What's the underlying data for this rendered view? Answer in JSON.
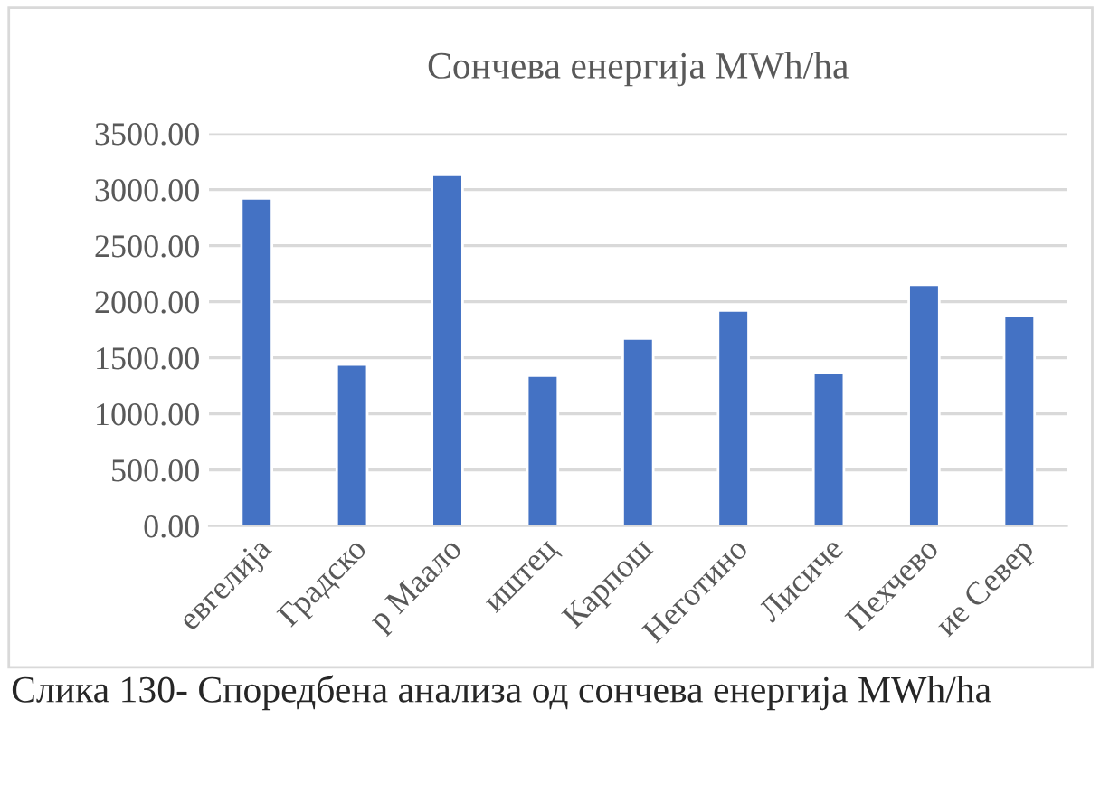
{
  "chart_data": {
    "type": "bar",
    "title": "Сончева енергија MWh/ha",
    "categories": [
      "евгелија",
      "Градско",
      "р Маало",
      "иштец",
      "Карпош",
      "Неготино",
      "Лисиче",
      "Пехчево",
      "ие Север"
    ],
    "values": [
      2920,
      1440,
      3130,
      1340,
      1670,
      1920,
      1370,
      2150,
      1870
    ],
    "color": "#4472c4",
    "ylim": [
      0,
      3500
    ],
    "yticks": [
      {
        "value": 0,
        "label": "0.00"
      },
      {
        "value": 500,
        "label": "500.00"
      },
      {
        "value": 1000,
        "label": "1000.00"
      },
      {
        "value": 1500,
        "label": "1500.00"
      },
      {
        "value": 2000,
        "label": "2000.00"
      },
      {
        "value": 2500,
        "label": "2500.00"
      },
      {
        "value": 3000,
        "label": "3000.00"
      },
      {
        "value": 3500,
        "label": "3500.00"
      }
    ],
    "grid": "y",
    "annotations": [
      "Слика 130- Споредбена анализа од сончева енергија MWh/ha"
    ]
  }
}
